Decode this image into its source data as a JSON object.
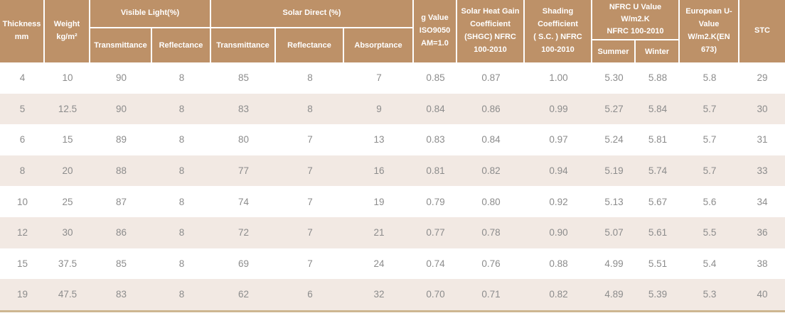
{
  "colors": {
    "header_bg": "#bd9168",
    "header_text": "#ffffff",
    "stripe_bg": "#f2e9e3",
    "row_text": "#8c8c8c",
    "bottom_border": "#cdb691",
    "page_bg": "#ffffff"
  },
  "header": {
    "thickness": "Thickness\nmm",
    "weight": "Weight\nkg/m²",
    "visible_light": "Visible Light(%)",
    "vl_transmittance": "Transmittance",
    "vl_reflectance": "Reflectance",
    "solar_direct": "Solar  Direct (%)",
    "sd_transmittance": "Transmittance",
    "sd_reflectance": "Reflectance",
    "sd_absorptance": "Absorptance",
    "g_value": "g Value\nISO9050\nAM=1.0",
    "shgc": "Solar Heat Gain\nCoefficient\n(SHGC) NFRC\n100-2010",
    "shading_coefficient": "Shading\nCoefficient\n( S.C. ) NFRC\n100-2010",
    "nfrc_u_value": "NFRC U Value\nW/m2.K\nNFRC 100-2010",
    "summer": "Summer",
    "winter": "Winter",
    "european_u_value": "European U-\nValue\nW/m2.K(EN\n673)",
    "stc": "STC"
  },
  "chart_data": {
    "type": "table",
    "title": "Glass performance specification table",
    "columns": [
      "Thickness mm",
      "Weight kg/m²",
      "Visible Light Transmittance (%)",
      "Visible Light Reflectance (%)",
      "Solar Direct Transmittance (%)",
      "Solar Direct Reflectance (%)",
      "Solar Direct Absorptance (%)",
      "g Value ISO9050 AM=1.0",
      "Solar Heat Gain Coefficient (SHGC) NFRC 100-2010",
      "Shading Coefficient (S.C.) NFRC 100-2010",
      "NFRC U Value W/m2.K Summer",
      "NFRC U Value W/m2.K Winter",
      "European U-Value W/m2.K (EN 673)",
      "STC"
    ],
    "rows": [
      [
        "4",
        "10",
        "90",
        "8",
        "85",
        "8",
        "7",
        "0.85",
        "0.87",
        "1.00",
        "5.30",
        "5.88",
        "5.8",
        "29"
      ],
      [
        "5",
        "12.5",
        "90",
        "8",
        "83",
        "8",
        "9",
        "0.84",
        "0.86",
        "0.99",
        "5.27",
        "5.84",
        "5.7",
        "30"
      ],
      [
        "6",
        "15",
        "89",
        "8",
        "80",
        "7",
        "13",
        "0.83",
        "0.84",
        "0.97",
        "5.24",
        "5.81",
        "5.7",
        "31"
      ],
      [
        "8",
        "20",
        "88",
        "8",
        "77",
        "7",
        "16",
        "0.81",
        "0.82",
        "0.94",
        "5.19",
        "5.74",
        "5.7",
        "33"
      ],
      [
        "10",
        "25",
        "87",
        "8",
        "74",
        "7",
        "19",
        "0.79",
        "0.80",
        "0.92",
        "5.13",
        "5.67",
        "5.6",
        "34"
      ],
      [
        "12",
        "30",
        "86",
        "8",
        "72",
        "7",
        "21",
        "0.77",
        "0.78",
        "0.90",
        "5.07",
        "5.61",
        "5.5",
        "36"
      ],
      [
        "15",
        "37.5",
        "85",
        "8",
        "69",
        "7",
        "24",
        "0.74",
        "0.76",
        "0.88",
        "4.99",
        "5.51",
        "5.4",
        "38"
      ],
      [
        "19",
        "47.5",
        "83",
        "8",
        "62",
        "6",
        "32",
        "0.70",
        "0.71",
        "0.82",
        "4.89",
        "5.39",
        "5.3",
        "40"
      ]
    ],
    "layout": {
      "striped_rows": true,
      "stripe_pattern": "odd rows white, even rows light beige",
      "header_grouped_columns": [
        "Visible Light(%)",
        "Solar Direct (%)",
        "NFRC U Value W/m2.K NFRC 100-2010"
      ]
    }
  }
}
